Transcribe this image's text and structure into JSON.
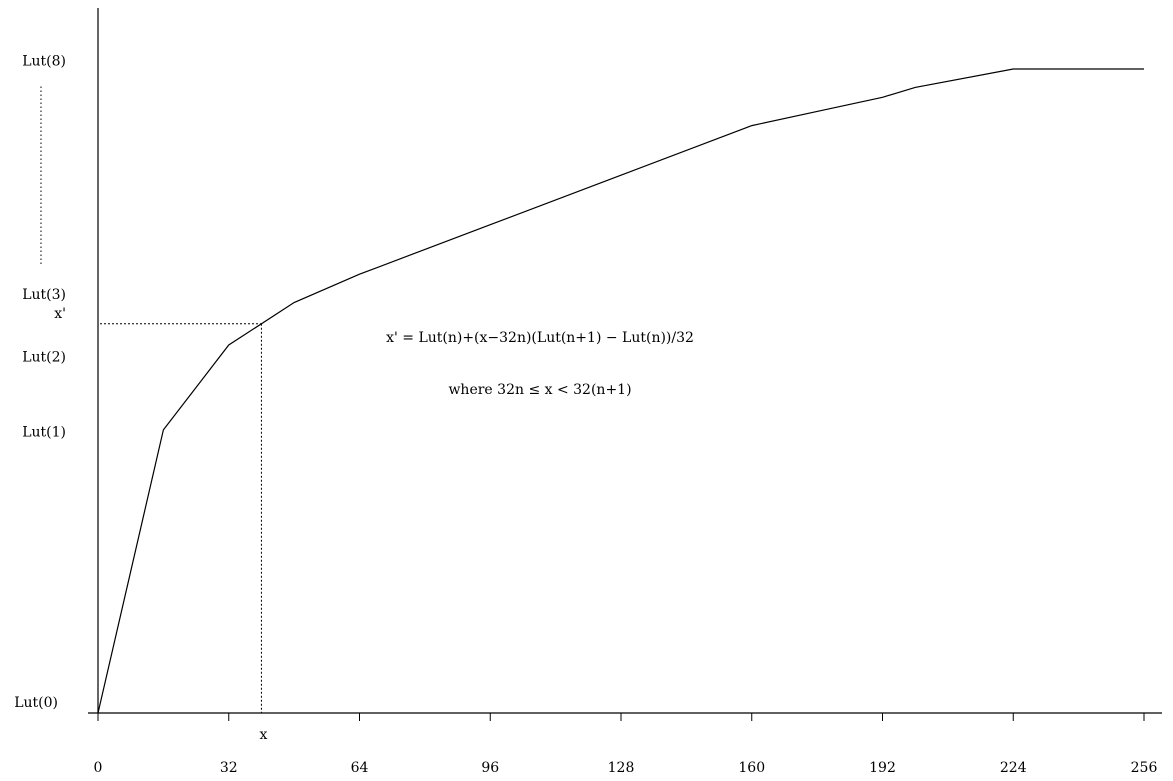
{
  "chart_data": {
    "type": "line",
    "x_ticks": [
      0,
      32,
      64,
      96,
      128,
      160,
      192,
      224,
      256
    ],
    "x_tick_labels": [
      "0",
      "32",
      "64",
      "96",
      "128",
      "160",
      "192",
      "224",
      "256"
    ],
    "x": [
      0,
      16,
      32,
      48,
      64,
      96,
      128,
      160,
      176,
      192,
      200,
      224,
      256
    ],
    "y": [
      0,
      2,
      2.6,
      2.9,
      3.1,
      3.45,
      3.8,
      4.15,
      4.25,
      4.35,
      4.42,
      4.55,
      4.55
    ],
    "xlim": [
      0,
      256
    ],
    "ylim": [
      0,
      4.55
    ],
    "y_labels": [
      {
        "text": "Lut(0)",
        "value": 0
      },
      {
        "text": "Lut(1)",
        "value": 1.99
      },
      {
        "text": "Lut(2)",
        "value": 2.52
      },
      {
        "text": "Lut(3)",
        "value": 2.96
      },
      {
        "text": "Lut(8)",
        "value": 4.61
      }
    ],
    "y_label_gap_marker": ":",
    "marker_x": {
      "label": "x",
      "value": 40
    },
    "marker_y": {
      "label": "x'",
      "value": 2.75
    },
    "annotations": [
      "x' = Lut(n)+(x−32n)(Lut(n+1) − Lut(n))/32",
      "where 32n ≤ x < 32(n+1)"
    ],
    "grid": false,
    "legend": "none",
    "line_color": "#000000",
    "axis_color": "#000000",
    "background": "#ffffff"
  }
}
